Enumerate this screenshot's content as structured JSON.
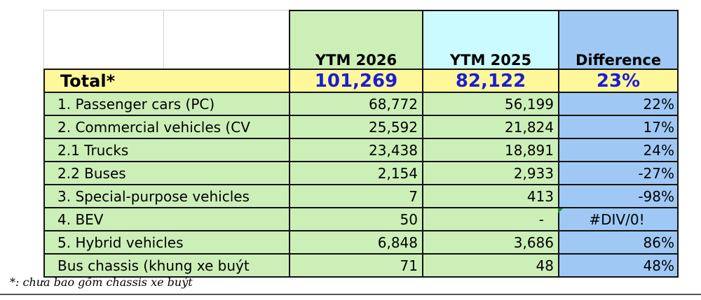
{
  "headers": {
    "ytm_2026": "YTM 2026",
    "ytm_2025": "YTM 2025",
    "difference": "Difference"
  },
  "total": {
    "label": "Total*",
    "ytm_2026": "101,269",
    "ytm_2025": "82,122",
    "difference": "23%"
  },
  "rows": [
    {
      "label": "1. Passenger cars (PC)",
      "ytm_2026": "68,772",
      "ytm_2025": "56,199",
      "difference": "22%"
    },
    {
      "label": "2. Commercial vehicles (CV",
      "ytm_2026": "25,592",
      "ytm_2025": "21,824",
      "difference": "17%"
    },
    {
      "label": "2.1 Trucks",
      "ytm_2026": "23,438",
      "ytm_2025": "18,891",
      "difference": "24%"
    },
    {
      "label": "2.2 Buses",
      "ytm_2026": "2,154",
      "ytm_2025": "2,933",
      "difference": "-27%"
    },
    {
      "label": "3. Special-purpose vehicles",
      "ytm_2026": "7",
      "ytm_2025": "413",
      "difference": "-98%"
    },
    {
      "label": "4. BEV",
      "ytm_2026": "50",
      "ytm_2025": "-",
      "difference": "#DIV/0!"
    },
    {
      "label": "5. Hybrid vehicles",
      "ytm_2026": "6,848",
      "ytm_2025": "3,686",
      "difference": "86%"
    },
    {
      "label": "Bus chassis (khung xe buýt",
      "ytm_2026": "71",
      "ytm_2025": "48",
      "difference": "48%"
    }
  ],
  "footnote": "*: chưa bao gồm chassis xe buýt",
  "colors": {
    "accent_blue": "#1d1dd6",
    "total_row": "#fff89a",
    "green_cells": "#ccefb8",
    "cyan_header": "#ccfbff",
    "diff_column": "#9fc9f4"
  }
}
